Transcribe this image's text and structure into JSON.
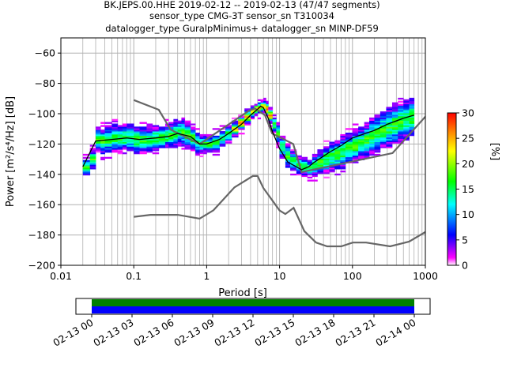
{
  "chart_data": [
    {
      "type": "heatmap",
      "title_lines": [
        "BK.JEPS.00.HHE   2019-02-12 -- 2019-02-13  (47/47 segments)",
        "sensor_type CMG-3T sensor_sn T310034",
        "datalogger_type GuralpMinimus+ datalogger_sn MINP-DF59"
      ],
      "xlabel": "Period [s]",
      "ylabel": "Power [m²/s⁴/Hz] [dB]",
      "xscale": "log",
      "xlim": [
        0.01,
        1000
      ],
      "ylim": [
        -200,
        -50
      ],
      "x_ticks": [
        {
          "v": 0.01,
          "label": "0.01"
        },
        {
          "v": 0.1,
          "label": "0.1"
        },
        {
          "v": 1,
          "label": "1"
        },
        {
          "v": 10,
          "label": "10"
        },
        {
          "v": 100,
          "label": "100"
        },
        {
          "v": 1000,
          "label": "1000"
        }
      ],
      "y_ticks": [
        {
          "v": -200,
          "label": "−200"
        },
        {
          "v": -180,
          "label": "−180"
        },
        {
          "v": -160,
          "label": "−160"
        },
        {
          "v": -140,
          "label": "−140"
        },
        {
          "v": -120,
          "label": "−120"
        },
        {
          "v": -100,
          "label": "−100"
        },
        {
          "v": -80,
          "label": "−80"
        },
        {
          "v": -60,
          "label": "−60"
        }
      ],
      "grid": true,
      "colorbar": {
        "label": "[%]",
        "range": [
          0,
          30
        ],
        "ticks": [
          "0",
          "5",
          "10",
          "15",
          "20",
          "25",
          "30"
        ],
        "colormap": [
          "#ffffff",
          "#ff00ff",
          "#0000ff",
          "#00ffff",
          "#00ff00",
          "#ffff00",
          "#ff8000",
          "#ff0000",
          "#800000"
        ]
      },
      "mean_psd": {
        "x": [
          0.02,
          0.03,
          0.05,
          0.08,
          0.12,
          0.2,
          0.3,
          0.4,
          0.6,
          0.8,
          1.0,
          1.5,
          2,
          3,
          4,
          5,
          5.5,
          6,
          7,
          8,
          10,
          13,
          17,
          20,
          25,
          30,
          40,
          50,
          70,
          100,
          150,
          200,
          300,
          500,
          700
        ],
        "y": [
          -135,
          -118,
          -117,
          -116,
          -117,
          -116,
          -115,
          -113,
          -115,
          -120,
          -120,
          -117,
          -113,
          -107,
          -101,
          -97,
          -95,
          -96,
          -103,
          -112,
          -123,
          -132,
          -135,
          -137,
          -135,
          -132,
          -128,
          -125,
          -121,
          -116,
          -113,
          -111,
          -107,
          -103,
          -101
        ]
      },
      "noise_models": [
        {
          "x": [
            0.1,
            0.22,
            0.32,
            0.8,
            3.8,
            4.6,
            6.3,
            7.9,
            15.4,
            20,
            354.8,
            10000
          ],
          "y": [
            -91,
            -97.4,
            -110.5,
            -120,
            -98,
            -96.5,
            -101,
            -113,
            -120,
            -138.5,
            -126,
            -48.5
          ]
        },
        {
          "x": [
            0.1,
            0.17,
            0.4,
            0.8,
            1.24,
            2.4,
            4.3,
            5.0,
            6.0,
            10.0,
            12.0,
            15.6,
            21.9,
            31.6,
            45,
            70,
            101,
            154,
            328,
            600,
            1000
          ],
          "y": [
            -168,
            -166.7,
            -166.7,
            -169.2,
            -163.7,
            -148.6,
            -141.1,
            -141.1,
            -149,
            -163.8,
            -166.2,
            -162.1,
            -177.5,
            -185,
            -187.5,
            -187.5,
            -185,
            -185,
            -187.5,
            -184.4,
            -178
          ]
        }
      ],
      "density": {
        "periods": [
          0.02,
          0.025,
          0.03,
          0.035,
          0.04,
          0.05,
          0.06,
          0.07,
          0.08,
          0.1,
          0.12,
          0.15,
          0.18,
          0.22,
          0.27,
          0.3,
          0.35,
          0.4,
          0.45,
          0.5,
          0.6,
          0.7,
          0.8,
          0.9,
          1.0,
          1.2,
          1.5,
          1.8,
          2.2,
          2.7,
          3.3,
          4.0,
          4.5,
          5.0,
          5.5,
          6.0,
          6.5,
          7.0,
          8.0,
          9.0,
          10,
          12,
          14,
          17,
          20,
          24,
          28,
          33,
          40,
          48,
          57,
          68,
          80,
          100,
          120,
          145,
          170,
          200,
          240,
          290,
          350,
          420,
          500,
          600,
          700
        ],
        "median": [
          -135,
          -130,
          -117,
          -118,
          -117,
          -116,
          -116,
          -116,
          -116,
          -117,
          -117,
          -117,
          -116,
          -116,
          -115,
          -114,
          -113,
          -112,
          -112,
          -114,
          -116,
          -119,
          -120,
          -120,
          -120,
          -119,
          -116,
          -113,
          -110,
          -106,
          -102,
          -99,
          -97,
          -96,
          -95,
          -95,
          -97,
          -101,
          -107,
          -113,
          -122,
          -128,
          -131,
          -134,
          -135,
          -136,
          -134,
          -132,
          -130,
          -128,
          -127,
          -125,
          -123,
          -121,
          -119,
          -117,
          -115,
          -113,
          -111,
          -109,
          -107,
          -105,
          -104,
          -102,
          -101
        ],
        "spread": [
          5,
          6,
          7,
          8,
          8,
          8,
          8,
          8,
          8,
          8,
          8,
          7,
          7,
          7,
          7,
          7,
          8,
          8,
          8,
          8,
          7,
          6,
          5,
          5,
          5,
          5,
          5,
          5,
          4,
          4,
          4,
          3,
          3,
          3,
          3,
          3,
          4,
          4,
          5,
          6,
          7,
          7,
          6,
          5,
          5,
          5,
          6,
          7,
          8,
          9,
          9,
          10,
          10,
          10,
          10,
          10,
          11,
          11,
          11,
          12,
          12,
          12,
          12,
          12,
          12
        ]
      }
    },
    {
      "type": "timeline",
      "tick_labels": [
        "02-13 00",
        "02-13 03",
        "02-13 06",
        "02-13 09",
        "02-13 12",
        "02-13 15",
        "02-13 18",
        "02-13 21",
        "02-14 00"
      ],
      "data_start_fraction": 0,
      "data_end_fraction": 1,
      "bar_colors": [
        "#008000",
        "#0000ff"
      ]
    }
  ]
}
